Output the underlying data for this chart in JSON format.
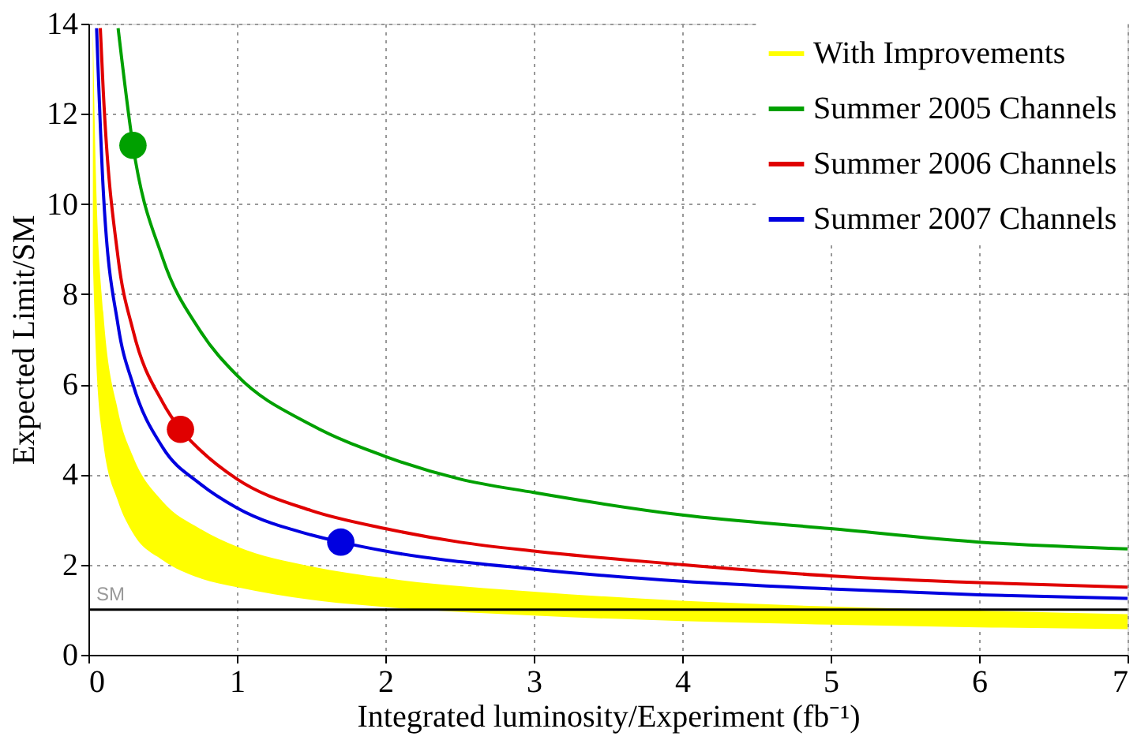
{
  "chart_data": {
    "type": "line",
    "xlabel": "Integrated luminosity/Experiment (fb⁻¹)",
    "ylabel": "Expected Limit/SM",
    "xlim": [
      0,
      7
    ],
    "ylim": [
      0,
      14
    ],
    "xticks": [
      0,
      1,
      2,
      3,
      4,
      5,
      6,
      7
    ],
    "yticks": [
      0,
      2,
      4,
      6,
      8,
      10,
      12,
      14
    ],
    "grid": true,
    "legend": "top right",
    "line_style": "solid",
    "series": [
      {
        "name": "With Improvements",
        "type": "area",
        "color": "#ffff00",
        "x": [
          0.03,
          0.05,
          0.1,
          0.2,
          0.3,
          0.5,
          0.75,
          1,
          1.5,
          2,
          3,
          4,
          5,
          6,
          7
        ],
        "values": [
          null,
          null,
          null,
          null,
          null,
          null,
          null,
          null,
          null,
          null,
          null,
          null,
          null,
          null,
          null
        ],
        "lower": [
          8.7,
          6.7,
          4.7,
          3.4,
          2.7,
          2.1,
          1.7,
          1.5,
          1.22,
          1.06,
          0.87,
          0.75,
          0.67,
          0.61,
          0.57
        ],
        "upper": [
          13.9,
          10.7,
          7.6,
          5.4,
          4.4,
          3.4,
          2.8,
          2.4,
          1.96,
          1.7,
          1.4,
          1.2,
          1.07,
          0.98,
          0.9
        ]
      },
      {
        "name": "Summer 2005 Channels",
        "color": "#00a000",
        "x": [
          0.2,
          0.3,
          0.5,
          0.75,
          1,
          1.5,
          2,
          2.5,
          3,
          4,
          5,
          6,
          7
        ],
        "values": [
          13.9,
          11.3,
          8.8,
          7.2,
          6.2,
          5.1,
          4.4,
          3.9,
          3.6,
          3.1,
          2.8,
          2.5,
          2.35
        ]
      },
      {
        "name": "Summer 2006 Channels",
        "color": "#e00000",
        "x": [
          0.08,
          0.1,
          0.2,
          0.3,
          0.5,
          0.62,
          0.75,
          1,
          1.5,
          2,
          2.5,
          3,
          4,
          5,
          6,
          7
        ],
        "values": [
          13.9,
          12.5,
          8.8,
          7.2,
          5.6,
          5.0,
          4.55,
          3.9,
          3.2,
          2.8,
          2.5,
          2.3,
          2.0,
          1.75,
          1.6,
          1.5
        ]
      },
      {
        "name": "Summer 2007 Channels",
        "color": "#0000e0",
        "x": [
          0.055,
          0.1,
          0.2,
          0.3,
          0.5,
          0.75,
          1,
          1.5,
          1.7,
          2,
          3,
          4,
          5,
          6,
          7
        ],
        "values": [
          13.9,
          10.3,
          7.3,
          6.0,
          4.6,
          3.8,
          3.26,
          2.66,
          2.5,
          2.3,
          1.9,
          1.63,
          1.46,
          1.33,
          1.25
        ]
      },
      {
        "type": "scatter",
        "marker": "circle",
        "x": [
          0.3,
          0.62,
          1.7
        ],
        "values": [
          11.3,
          5.0,
          2.5
        ],
        "colors": [
          "#00a000",
          "#e00000",
          "#0000e0"
        ]
      }
    ],
    "ref_lines": [
      {
        "axis": "y",
        "value": 1,
        "label": "SM",
        "color": "#000000"
      }
    ]
  }
}
